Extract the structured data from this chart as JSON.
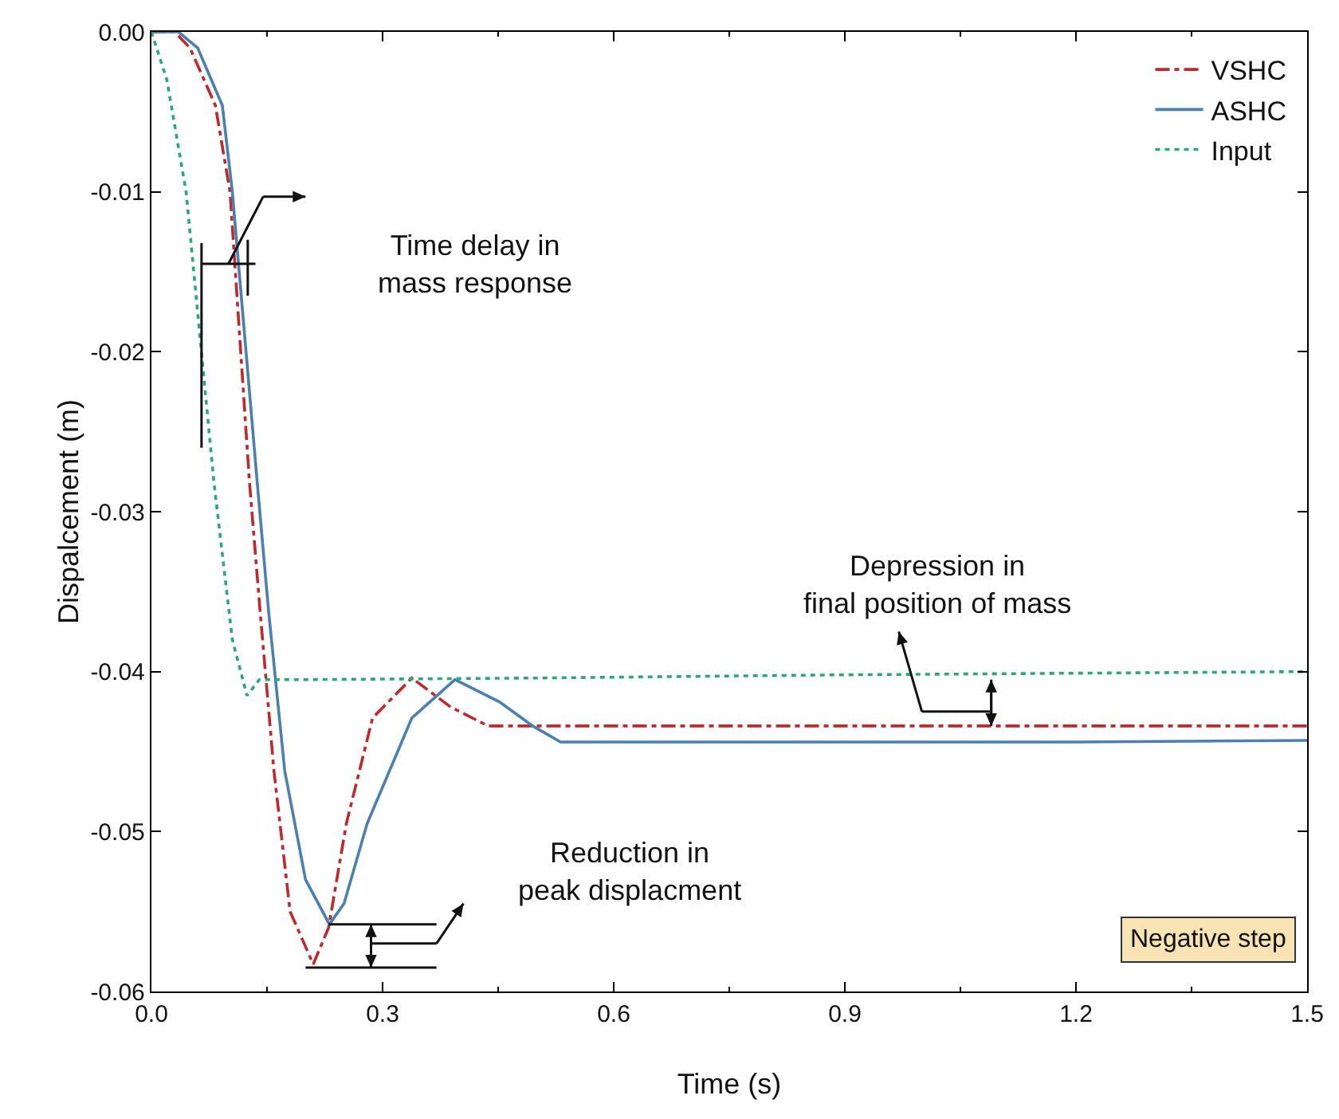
{
  "chart_data": {
    "type": "line",
    "xlabel": "Time (s)",
    "ylabel": "Dispalcement (m)",
    "xlim": [
      0,
      1.5
    ],
    "ylim": [
      -0.06,
      0
    ],
    "xticks": [
      {
        "value": 0,
        "label": "0.0"
      },
      {
        "value": 0.3,
        "label": "0.3"
      },
      {
        "value": 0.6,
        "label": "0.6"
      },
      {
        "value": 0.9,
        "label": "0.9"
      },
      {
        "value": 1.2,
        "label": "1.2"
      },
      {
        "value": 1.5,
        "label": "1.5"
      }
    ],
    "yticks": [
      {
        "value": 0,
        "label": "0.00"
      },
      {
        "value": -0.01,
        "label": "-0.01"
      },
      {
        "value": -0.02,
        "label": "-0.02"
      },
      {
        "value": -0.03,
        "label": "-0.03"
      },
      {
        "value": -0.04,
        "label": "-0.04"
      },
      {
        "value": -0.05,
        "label": "-0.05"
      },
      {
        "value": -0.06,
        "label": "-0.06"
      }
    ],
    "grid": false,
    "legend": "top right",
    "marker": "none",
    "series": [
      {
        "name": "VSHC",
        "color": "#c0282d",
        "line_style": "dashdot",
        "x": [
          0,
          0.03,
          0.05,
          0.083,
          0.102,
          0.127,
          0.141,
          0.159,
          0.18,
          0.21,
          0.23,
          0.253,
          0.287,
          0.338,
          0.388,
          0.437,
          0.5,
          0.8,
          1.2,
          1.5
        ],
        "values": [
          0,
          0,
          -0.001,
          -0.0046,
          -0.01,
          -0.028,
          -0.0362,
          -0.0462,
          -0.055,
          -0.0583,
          -0.056,
          -0.0495,
          -0.0429,
          -0.0404,
          -0.0422,
          -0.0434,
          -0.0434,
          -0.0434,
          -0.0434,
          -0.0434
        ]
      },
      {
        "name": "ASHC",
        "color": "#4a7fb0",
        "line_style": "solid",
        "x": [
          0,
          0.035,
          0.06,
          0.092,
          0.105,
          0.137,
          0.152,
          0.173,
          0.2,
          0.231,
          0.25,
          0.28,
          0.338,
          0.394,
          0.452,
          0.495,
          0.531,
          0.8,
          1.2,
          1.5
        ],
        "values": [
          0,
          0,
          -0.001,
          -0.0046,
          -0.01,
          -0.028,
          -0.0362,
          -0.0462,
          -0.053,
          -0.0558,
          -0.0545,
          -0.0495,
          -0.0429,
          -0.0405,
          -0.0419,
          -0.0434,
          -0.0444,
          -0.0444,
          -0.0444,
          -0.0443
        ]
      },
      {
        "name": "Input",
        "color": "#2aa87a",
        "line_style": "dotted",
        "x": [
          0,
          0.02,
          0.045,
          0.081,
          0.105,
          0.124,
          0.14,
          0.2,
          0.5,
          0.9,
          1.5
        ],
        "values": [
          0,
          -0.003,
          -0.01,
          -0.0281,
          -0.038,
          -0.0415,
          -0.0405,
          -0.0405,
          -0.0404,
          -0.0402,
          -0.04
        ]
      }
    ],
    "annotations": [
      "Time delay in\nmass response",
      "Depression in\nfinal position of mass",
      "Reduction in\npeak displacment",
      "Negative step"
    ]
  }
}
